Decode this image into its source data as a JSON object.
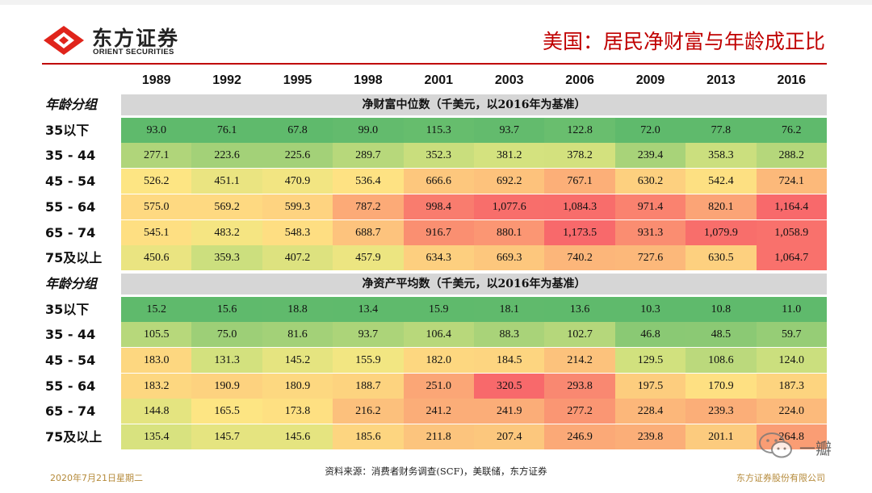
{
  "header": {
    "logo_cn": "东方证券",
    "logo_en": "ORIENT SECURITIES",
    "title": "美国：居民净财富与年龄成正比"
  },
  "years": [
    "1989",
    "1992",
    "1995",
    "1998",
    "2001",
    "2003",
    "2006",
    "2009",
    "2013",
    "2016"
  ],
  "age_groups": [
    "35以下",
    "35 - 44",
    "45 - 54",
    "55 - 64",
    "65 - 74",
    "75及以上"
  ],
  "sections": [
    {
      "group_label": "年龄分组",
      "band_title": "净财富中位数（千美元，以2016年为基准）",
      "rows": [
        {
          "label": "35以下",
          "values": [
            "93.0",
            "76.1",
            "67.8",
            "99.0",
            "115.3",
            "93.7",
            "122.8",
            "72.0",
            "77.8",
            "76.2"
          ],
          "colors": [
            "#5fba6c",
            "#5fba6c",
            "#5fba6c",
            "#63bb6d",
            "#66bd6d",
            "#63bb6d",
            "#69be6e",
            "#5fba6c",
            "#5fba6c",
            "#5fba6c"
          ]
        },
        {
          "label": "35 - 44",
          "values": [
            "277.1",
            "223.6",
            "225.6",
            "289.7",
            "352.3",
            "381.2",
            "378.2",
            "239.4",
            "358.3",
            "288.2"
          ],
          "colors": [
            "#b0d57a",
            "#a3d178",
            "#a3d178",
            "#b7d87b",
            "#c9de7d",
            "#d4e27f",
            "#d3e17e",
            "#a8d379",
            "#cbdf7e",
            "#b5d77b"
          ]
        },
        {
          "label": "45 - 54",
          "values": [
            "526.2",
            "451.1",
            "470.9",
            "536.4",
            "666.6",
            "692.2",
            "767.1",
            "630.2",
            "542.4",
            "724.1"
          ],
          "colors": [
            "#fde583",
            "#eae481",
            "#f2e582",
            "#fee283",
            "#fdc77d",
            "#fdc27c",
            "#fcaf78",
            "#fdd07f",
            "#fde082",
            "#fcb97a"
          ]
        },
        {
          "label": "55 - 64",
          "values": [
            "575.0",
            "569.2",
            "599.3",
            "787.2",
            "998.4",
            "1,077.6",
            "1,084.3",
            "971.4",
            "820.1",
            "1,164.4"
          ],
          "colors": [
            "#fed981",
            "#fed981",
            "#fed380",
            "#fcaa77",
            "#f97c6e",
            "#f86e6b",
            "#f86d6b",
            "#fa826f",
            "#fba476",
            "#f8696b"
          ]
        },
        {
          "label": "65 - 74",
          "values": [
            "545.1",
            "483.2",
            "548.3",
            "688.7",
            "916.7",
            "880.1",
            "1,173.5",
            "931.3",
            "1,079.9",
            "1,058.9"
          ],
          "colors": [
            "#fedf82",
            "#f5e582",
            "#fede82",
            "#fdc37d",
            "#fa8f71",
            "#fb9673",
            "#f8696b",
            "#fa8d71",
            "#f86e6b",
            "#f9716c"
          ]
        },
        {
          "label": "75及以上",
          "values": [
            "450.6",
            "359.3",
            "407.2",
            "457.9",
            "634.3",
            "669.3",
            "740.2",
            "727.6",
            "630.5",
            "1,064.7"
          ],
          "colors": [
            "#eae481",
            "#ccdf7e",
            "#dde27f",
            "#ece581",
            "#fdcf7f",
            "#fdc77d",
            "#fcb67a",
            "#fcb87a",
            "#fdd07f",
            "#f9716c"
          ]
        }
      ]
    },
    {
      "group_label": "年龄分组",
      "band_title": "净资产平均数（千美元，以2016年为基准）",
      "rows": [
        {
          "label": "35以下",
          "values": [
            "15.2",
            "15.6",
            "18.8",
            "13.4",
            "15.9",
            "18.1",
            "13.6",
            "10.3",
            "10.8",
            "11.0"
          ],
          "colors": [
            "#5fba6c",
            "#5fba6c",
            "#60ba6c",
            "#5fba6c",
            "#5fba6c",
            "#60ba6c",
            "#5fba6c",
            "#5fba6c",
            "#5fba6c",
            "#5fba6c"
          ]
        },
        {
          "label": "35 - 44",
          "values": [
            "105.5",
            "75.0",
            "81.6",
            "93.7",
            "106.4",
            "88.3",
            "102.7",
            "46.8",
            "48.5",
            "59.7"
          ],
          "colors": [
            "#b7d87b",
            "#9dcf77",
            "#a3d178",
            "#acd479",
            "#b8d87b",
            "#a9d379",
            "#b5d77b",
            "#8ac974",
            "#8bc974",
            "#96cd76"
          ]
        },
        {
          "label": "45 - 54",
          "values": [
            "183.0",
            "131.3",
            "145.2",
            "155.9",
            "182.0",
            "184.5",
            "214.2",
            "129.5",
            "108.6",
            "124.0"
          ],
          "colors": [
            "#fdd780",
            "#d3e17e",
            "#e5e480",
            "#f2e682",
            "#fdd780",
            "#fdd580",
            "#fcc27c",
            "#d1e17e",
            "#bbd97c",
            "#cbdf7e"
          ]
        },
        {
          "label": "55 - 64",
          "values": [
            "183.2",
            "190.9",
            "180.9",
            "188.7",
            "251.0",
            "320.5",
            "293.8",
            "197.5",
            "170.9",
            "187.3"
          ],
          "colors": [
            "#fdd780",
            "#fdd27f",
            "#fdd880",
            "#fdd37f",
            "#fba676",
            "#f8696b",
            "#f98871",
            "#fdcd7e",
            "#fee082",
            "#fdd47f"
          ]
        },
        {
          "label": "65 - 74",
          "values": [
            "144.8",
            "165.5",
            "173.8",
            "216.2",
            "241.2",
            "241.9",
            "277.2",
            "228.4",
            "239.3",
            "224.0"
          ],
          "colors": [
            "#e4e480",
            "#fde583",
            "#fee082",
            "#fcc07c",
            "#fbad78",
            "#fbad78",
            "#fa9673",
            "#fcb77a",
            "#fbae78",
            "#fcba7b"
          ]
        },
        {
          "label": "75及以上",
          "values": [
            "135.4",
            "145.7",
            "145.6",
            "185.6",
            "211.8",
            "207.4",
            "246.9",
            "239.8",
            "201.1",
            "264.8"
          ],
          "colors": [
            "#d8e27f",
            "#e5e480",
            "#e5e480",
            "#fdd580",
            "#fcc47d",
            "#fcc77d",
            "#fba977",
            "#fbae78",
            "#fccb7e",
            "#fa9d74"
          ]
        }
      ]
    }
  ],
  "footer": {
    "date": "2020年7月21日星期二",
    "source": "资料来源：消费者财务调查(SCF)，美联储，东方证券",
    "company": "东方证券股份有限公司",
    "watermark": "一瓣"
  },
  "colors": {
    "brand_red": "#c00000",
    "band_gray": "#d6d6d6",
    "footer_gold": "#b58a3a"
  }
}
